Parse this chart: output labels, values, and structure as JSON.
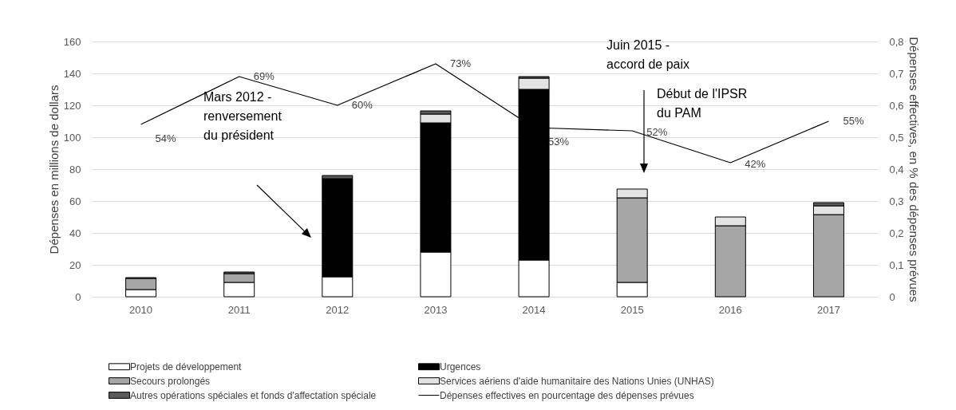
{
  "chart_data": {
    "type": "bar",
    "stacked": true,
    "categories": [
      "2010",
      "2011",
      "2012",
      "2013",
      "2014",
      "2015",
      "2016",
      "2017"
    ],
    "ylabel": "Dépenses en millions de dollars",
    "y2label": "Dépenses effectives, en % des dépenses prévues",
    "ylim": [
      0,
      160
    ],
    "yticks": [
      0,
      20,
      40,
      60,
      80,
      100,
      120,
      140,
      160
    ],
    "y2lim": [
      0,
      0.8
    ],
    "y2ticks": [
      {
        "value": 0,
        "label": "0"
      },
      {
        "value": 0.1,
        "label": "0,1"
      },
      {
        "value": 0.2,
        "label": "0,2"
      },
      {
        "value": 0.3,
        "label": "0,3"
      },
      {
        "value": 0.4,
        "label": "0,4"
      },
      {
        "value": 0.5,
        "label": "0,5"
      },
      {
        "value": 0.6,
        "label": "0,6"
      },
      {
        "value": 0.7,
        "label": "0,7"
      },
      {
        "value": 0.8,
        "label": "0,8"
      }
    ],
    "grid": "y",
    "legend": "bottom",
    "series": [
      {
        "name": "Projets de développement",
        "color": "#ffffff",
        "values": [
          4.5,
          9,
          12.5,
          28,
          23,
          9,
          null,
          null
        ]
      },
      {
        "name": "Urgences",
        "color": "#000000",
        "values": [
          null,
          null,
          61.5,
          81,
          107,
          null,
          null,
          null
        ]
      },
      {
        "name": "Secours prolongés",
        "color": "#a6a6a6",
        "values": [
          7,
          5.5,
          null,
          null,
          null,
          53,
          44.5,
          51.5
        ]
      },
      {
        "name": "Services aériens d'aide humanitaire des Nations Unies (UNHAS)",
        "color": "#e3e3e3",
        "values": [
          null,
          null,
          null,
          5.5,
          7,
          5.5,
          5.5,
          5.5
        ]
      },
      {
        "name": "Autres opérations spéciales et fonds d'affectation spéciale",
        "color": "#595959",
        "values": [
          0.5,
          1,
          2,
          2,
          1,
          null,
          null,
          2
        ]
      },
      {
        "name": "Dépenses effectives en pourcentage des dépenses prévues",
        "type": "line",
        "axis": "y2",
        "color": "#000000",
        "values": [
          0.54,
          0.69,
          0.6,
          0.73,
          0.53,
          0.52,
          0.42,
          0.55
        ],
        "value_labels": [
          "54%",
          "69%",
          "60%",
          "73%",
          "53%",
          "52%",
          "42%",
          "55%"
        ]
      }
    ],
    "annotations": [
      "Mars 2012 -\nrenversement\ndu président",
      "Juin 2015 -\naccord de paix",
      "Début de l'IPSR\ndu PAM"
    ]
  }
}
